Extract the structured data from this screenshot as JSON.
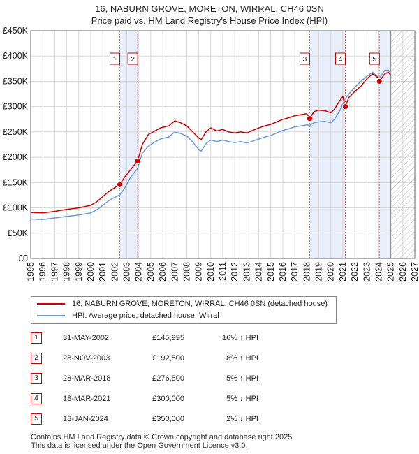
{
  "chart_data": {
    "type": "line",
    "title": "16, NABURN GROVE, MORETON, WIRRAL, CH46 0SN",
    "subtitle": "Price paid vs. HM Land Registry's House Price Index (HPI)",
    "xlabel": "",
    "ylabel": "",
    "xlim": [
      1995,
      2027
    ],
    "ylim": [
      0,
      450000
    ],
    "y_ticks": [
      0,
      50000,
      100000,
      150000,
      200000,
      250000,
      300000,
      350000,
      400000,
      450000
    ],
    "y_tick_labels": [
      "£0",
      "£50K",
      "£100K",
      "£150K",
      "£200K",
      "£250K",
      "£300K",
      "£350K",
      "£400K",
      "£450K"
    ],
    "x_ticks": [
      1995,
      1996,
      1997,
      1998,
      1999,
      2000,
      2001,
      2002,
      2003,
      2004,
      2005,
      2006,
      2007,
      2008,
      2009,
      2010,
      2011,
      2012,
      2013,
      2014,
      2015,
      2016,
      2017,
      2018,
      2019,
      2020,
      2021,
      2022,
      2023,
      2024,
      2025,
      2026,
      2027
    ],
    "forecast_from": 2025.0,
    "grid": true,
    "series": [
      {
        "name": "16, NABURN GROVE, MORETON, WIRRAL, CH46 0SN (detached house)",
        "color": "#cc0000",
        "x": [
          1995.0,
          1996.0,
          1997.0,
          1998.0,
          1999.0,
          2000.0,
          2000.5,
          2001.0,
          2001.5,
          2002.0,
          2002.42,
          2002.8,
          2003.3,
          2003.91,
          2004.3,
          2004.8,
          2005.2,
          2005.8,
          2006.5,
          2007.0,
          2007.5,
          2008.0,
          2008.5,
          2009.0,
          2009.2,
          2009.6,
          2010.0,
          2010.5,
          2011.0,
          2011.5,
          2012.0,
          2012.5,
          2013.0,
          2013.5,
          2014.0,
          2014.5,
          2015.0,
          2015.5,
          2016.0,
          2016.5,
          2017.0,
          2017.5,
          2018.0,
          2018.24,
          2018.6,
          2019.0,
          2019.5,
          2020.0,
          2020.3,
          2020.7,
          2021.0,
          2021.21,
          2021.5,
          2022.0,
          2022.5,
          2023.0,
          2023.5,
          2024.0,
          2024.05,
          2024.5,
          2024.8,
          2025.0
        ],
        "values": [
          91000,
          90000,
          93000,
          97000,
          100000,
          105000,
          112000,
          122000,
          132000,
          140000,
          145995,
          160000,
          175000,
          192500,
          225000,
          245000,
          250000,
          258000,
          262000,
          272000,
          268000,
          262000,
          250000,
          238000,
          235000,
          250000,
          258000,
          252000,
          255000,
          250000,
          248000,
          250000,
          248000,
          253000,
          258000,
          262000,
          265000,
          270000,
          275000,
          278000,
          282000,
          284000,
          286000,
          276500,
          290000,
          293000,
          292000,
          288000,
          295000,
          310000,
          320000,
          300000,
          318000,
          330000,
          340000,
          355000,
          365000,
          356000,
          350000,
          365000,
          368000,
          362000
        ]
      },
      {
        "name": "HPI: Average price, detached house, Wirral",
        "color": "#6b9ad2",
        "x": [
          1995.0,
          1996.0,
          1997.0,
          1998.0,
          1999.0,
          2000.0,
          2000.5,
          2001.0,
          2001.5,
          2002.0,
          2002.42,
          2002.8,
          2003.3,
          2003.91,
          2004.3,
          2004.8,
          2005.2,
          2005.8,
          2006.5,
          2007.0,
          2007.5,
          2008.0,
          2008.5,
          2009.0,
          2009.2,
          2009.6,
          2010.0,
          2010.5,
          2011.0,
          2011.5,
          2012.0,
          2012.5,
          2013.0,
          2013.5,
          2014.0,
          2014.5,
          2015.0,
          2015.5,
          2016.0,
          2016.5,
          2017.0,
          2017.5,
          2018.0,
          2018.24,
          2018.6,
          2019.0,
          2019.5,
          2020.0,
          2020.3,
          2020.7,
          2021.0,
          2021.21,
          2021.5,
          2022.0,
          2022.5,
          2023.0,
          2023.5,
          2024.0,
          2024.05,
          2024.5,
          2024.8,
          2025.0
        ],
        "values": [
          78000,
          77000,
          80000,
          83000,
          86000,
          90000,
          96000,
          105000,
          114000,
          121000,
          125500,
          138000,
          160000,
          178000,
          208000,
          222000,
          228000,
          236000,
          240000,
          250000,
          247000,
          242000,
          230000,
          215000,
          212000,
          227000,
          234000,
          231000,
          234000,
          231000,
          229000,
          231000,
          228000,
          232000,
          236000,
          240000,
          243000,
          248000,
          253000,
          256000,
          260000,
          262000,
          264000,
          263300,
          268000,
          270000,
          271000,
          268000,
          275000,
          290000,
          305000,
          315700,
          325000,
          338000,
          350000,
          360000,
          368000,
          357000,
          356000,
          372000,
          372000,
          366000
        ]
      }
    ],
    "sales": [
      {
        "num": "1",
        "date": "31-MAY-2002",
        "x": 2002.42,
        "price": 145995,
        "price_label": "£145,995",
        "hpi": "16% ↑ HPI"
      },
      {
        "num": "2",
        "date": "28-NOV-2003",
        "x": 2003.91,
        "price": 192500,
        "price_label": "£192,500",
        "hpi": "8% ↑ HPI"
      },
      {
        "num": "3",
        "date": "28-MAR-2018",
        "x": 2018.24,
        "price": 276500,
        "price_label": "£276,500",
        "hpi": "5% ↑ HPI"
      },
      {
        "num": "4",
        "date": "18-MAR-2021",
        "x": 2021.21,
        "price": 300000,
        "price_label": "£300,000",
        "hpi": "5% ↓ HPI"
      },
      {
        "num": "5",
        "date": "18-JAN-2024",
        "x": 2024.05,
        "price": 350000,
        "price_label": "£350,000",
        "hpi": "2% ↓ HPI"
      }
    ],
    "shaded_pairs": [
      [
        2002.42,
        2003.91
      ],
      [
        2018.24,
        2021.21
      ],
      [
        2024.05,
        2025.0
      ]
    ]
  },
  "legend": {
    "items": [
      {
        "label": "16, NABURN GROVE, MORETON, WIRRAL, CH46 0SN (detached house)",
        "color": "#cc0000"
      },
      {
        "label": "HPI: Average price, detached house, Wirral",
        "color": "#6b9ad2"
      }
    ]
  },
  "footer": {
    "line1": "Contains HM Land Registry data © Crown copyright and database right 2025.",
    "line2": "This data is licensed under the Open Government Licence v3.0."
  }
}
